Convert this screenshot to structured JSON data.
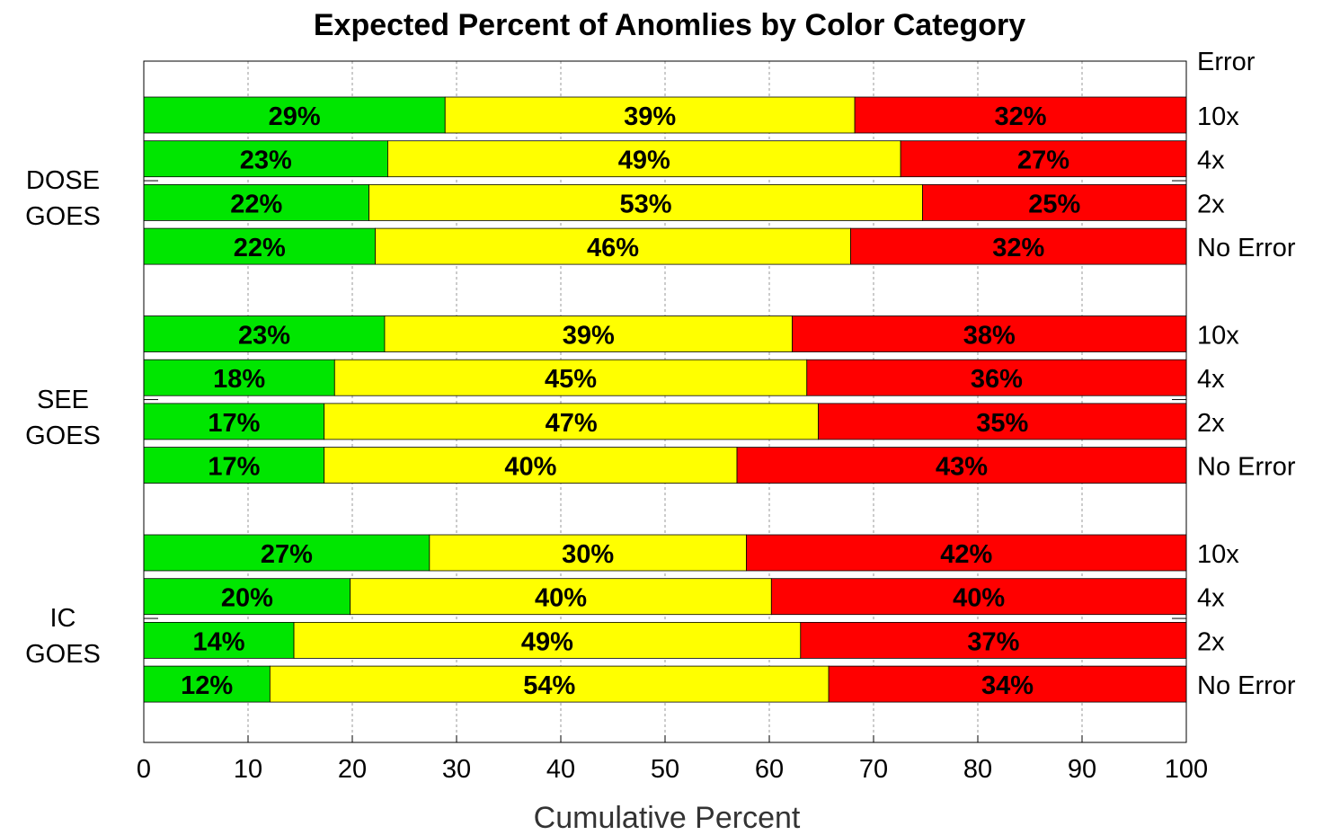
{
  "chart_data": {
    "type": "stacked_barh",
    "title": "Expected Percent of Anomlies by Color Category",
    "xlabel": "Cumulative Percent",
    "right_header": "Error",
    "groups": [
      "DOSE\nGOES",
      "SEE\nGOES",
      "IC\nGOES"
    ],
    "categories": [
      "10x",
      "4x",
      "2x",
      "No Error",
      "10x",
      "4x",
      "2x",
      "No Error",
      "10x",
      "4x",
      "2x",
      "No Error"
    ],
    "series": [
      {
        "color": "#00e600",
        "values": [
          28.9,
          23.4,
          21.6,
          22.2,
          23.1,
          18.3,
          17.3,
          17.3,
          27.4,
          19.8,
          14.4,
          12.1
        ],
        "value_labels": [
          "29%",
          "23%",
          "22%",
          "22%",
          "23%",
          "18%",
          "17%",
          "17%",
          "27%",
          "20%",
          "14%",
          "12%"
        ]
      },
      {
        "color": "#ffff00",
        "values": [
          39.3,
          49.2,
          53.1,
          45.6,
          39.1,
          45.3,
          47.4,
          39.6,
          30.4,
          40.4,
          48.6,
          53.6
        ],
        "value_labels": [
          "39%",
          "49%",
          "53%",
          "46%",
          "39%",
          "45%",
          "47%",
          "40%",
          "30%",
          "40%",
          "49%",
          "54%"
        ]
      },
      {
        "color": "#ff0000",
        "values": [
          31.8,
          27.4,
          25.3,
          32.2,
          37.8,
          36.4,
          35.3,
          43.1,
          42.2,
          39.8,
          37.0,
          34.3
        ],
        "value_labels": [
          "32%",
          "27%",
          "25%",
          "32%",
          "38%",
          "36%",
          "35%",
          "43%",
          "42%",
          "40%",
          "37%",
          "34%"
        ]
      }
    ],
    "xlim": [
      0,
      100
    ],
    "xticks": [
      0,
      10,
      20,
      30,
      40,
      50,
      60,
      70,
      80,
      90,
      100
    ],
    "grid": true
  }
}
